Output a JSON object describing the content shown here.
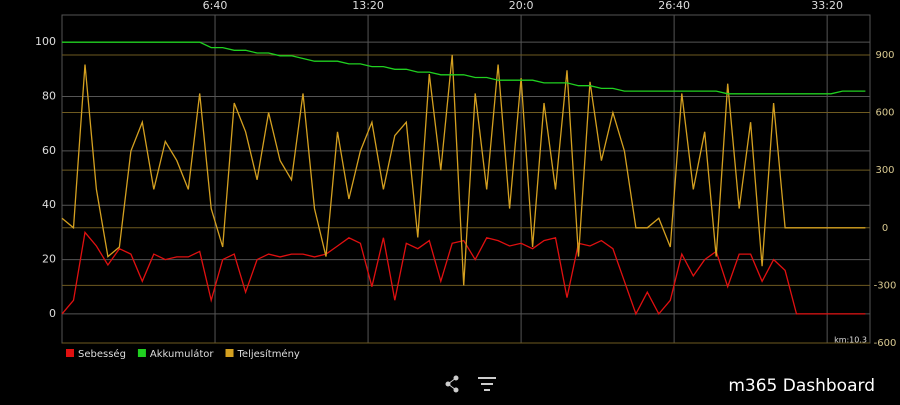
{
  "chart_data": {
    "type": "line",
    "annotation": "km:10.3",
    "x": [
      0,
      30,
      60,
      90,
      120,
      150,
      180,
      210,
      240,
      270,
      300,
      330,
      360,
      390,
      420,
      450,
      480,
      510,
      540,
      570,
      600,
      630,
      660,
      690,
      720,
      750,
      780,
      810,
      840,
      870,
      900,
      930,
      960,
      990,
      1020,
      1050,
      1080,
      1110,
      1140,
      1170,
      1200,
      1230,
      1260,
      1290,
      1320,
      1350,
      1380,
      1410,
      1440,
      1470,
      1500,
      1530,
      1560,
      1590,
      1620,
      1650,
      1680,
      1710,
      1740,
      1770,
      1800,
      1830,
      1860,
      1890,
      1920,
      1950,
      1980,
      2010,
      2040,
      2070,
      2100
    ],
    "xlim": [
      0,
      2112
    ],
    "xticks": [
      {
        "value": 400,
        "label": "6:40"
      },
      {
        "value": 800,
        "label": "13:20"
      },
      {
        "value": 1200,
        "label": "20:0"
      },
      {
        "value": 1600,
        "label": "26:40"
      },
      {
        "value": 2000,
        "label": "33:20"
      }
    ],
    "ylim": [
      -10.7,
      110
    ],
    "yticks": [
      0,
      20,
      40,
      60,
      80,
      100
    ],
    "y2lim": [
      -600,
      1108
    ],
    "y2ticks": [
      -600,
      -300,
      0,
      300,
      600,
      900
    ],
    "grid": true,
    "legend": "bottom-left",
    "series": [
      {
        "name": "Sebesség",
        "color": "#e01010",
        "values": [
          0,
          5,
          30,
          25,
          18,
          24,
          22,
          12,
          22,
          20,
          21,
          21,
          23,
          5,
          20,
          22,
          8,
          20,
          22,
          21,
          22,
          22,
          21,
          22,
          25,
          28,
          26,
          10,
          28,
          5,
          26,
          24,
          27,
          12,
          26,
          27,
          20,
          28,
          27,
          25,
          26,
          24,
          27,
          28,
          6,
          26,
          25,
          27,
          24,
          12,
          0,
          8,
          0,
          5,
          22,
          14,
          20,
          23,
          10,
          22,
          22,
          12,
          20,
          16,
          0,
          0,
          0,
          0,
          0,
          0,
          0
        ]
      },
      {
        "name": "Akkumulátor",
        "color": "#20d020",
        "values": [
          100,
          100,
          100,
          100,
          100,
          100,
          100,
          100,
          100,
          100,
          100,
          100,
          100,
          98,
          98,
          97,
          97,
          96,
          96,
          95,
          95,
          94,
          93,
          93,
          93,
          92,
          92,
          91,
          91,
          90,
          90,
          89,
          89,
          88,
          88,
          88,
          87,
          87,
          86,
          86,
          86,
          86,
          85,
          85,
          85,
          84,
          84,
          83,
          83,
          82,
          82,
          82,
          82,
          82,
          82,
          82,
          82,
          82,
          81,
          81,
          81,
          81,
          81,
          81,
          81,
          81,
          81,
          81,
          82,
          82,
          82
        ]
      },
      {
        "name": "Teljesítmény",
        "color": "#d4a020",
        "axis": "y2",
        "values": [
          50,
          0,
          850,
          200,
          -150,
          -100,
          400,
          550,
          200,
          450,
          350,
          200,
          700,
          100,
          -100,
          650,
          500,
          250,
          600,
          350,
          250,
          700,
          100,
          -150,
          500,
          150,
          400,
          550,
          200,
          480,
          550,
          -50,
          800,
          300,
          900,
          -300,
          700,
          200,
          850,
          100,
          780,
          -100,
          650,
          200,
          820,
          -150,
          760,
          350,
          600,
          400,
          0,
          0,
          50,
          -100,
          700,
          200,
          500,
          -150,
          750,
          100,
          550,
          -200,
          650,
          0,
          0,
          0,
          0,
          0,
          0,
          0,
          0
        ]
      }
    ]
  },
  "footer": {
    "app_name": "m365 Dashboard"
  }
}
